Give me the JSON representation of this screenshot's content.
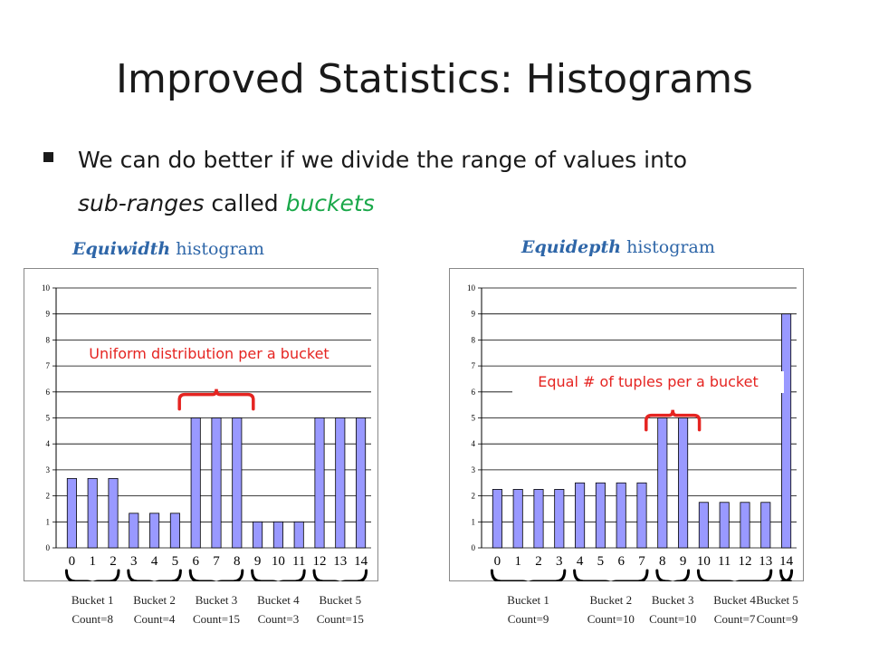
{
  "slide": {
    "title": "Improved Statistics: Histograms",
    "bullet": {
      "part1": "We can do better if we divide the range of values into",
      "part2": "sub-ranges",
      "part3": " called ",
      "part4": "buckets"
    }
  },
  "colors": {
    "bar": "#9999ff",
    "accent": "#e52421",
    "green": "#1aa84a",
    "title_blue": "#2e66a8"
  },
  "left": {
    "heading_bold": "Equiwidth",
    "heading_rest": " histogram",
    "annotation": "Uniform distribution per a bucket",
    "buckets": [
      {
        "name": "Bucket 1",
        "count": "Count=8"
      },
      {
        "name": "Bucket 2",
        "count": "Count=4"
      },
      {
        "name": "Bucket 3",
        "count": "Count=15"
      },
      {
        "name": "Bucket 4",
        "count": "Count=3"
      },
      {
        "name": "Bucket 5",
        "count": "Count=15"
      }
    ]
  },
  "right": {
    "heading_bold": "Equidepth",
    "heading_rest": " histogram",
    "annotation": "Equal # of tuples per a bucket",
    "buckets": [
      {
        "name": "Bucket 1",
        "count": "Count=9"
      },
      {
        "name": "Bucket 2",
        "count": "Count=10"
      },
      {
        "name": "Bucket 3",
        "count": "Count=10"
      },
      {
        "name": "Bucket 4",
        "count": "Count=7"
      },
      {
        "name": "Bucket 5",
        "count": "Count=9"
      }
    ]
  },
  "chart_data": [
    {
      "type": "bar",
      "categories": [
        "0",
        "1",
        "2",
        "3",
        "4",
        "5",
        "6",
        "7",
        "8",
        "9",
        "10",
        "11",
        "12",
        "13",
        "14"
      ],
      "values": [
        2.67,
        2.67,
        2.67,
        1.33,
        1.33,
        1.33,
        5,
        5,
        5,
        1,
        1,
        1,
        5,
        5,
        5
      ],
      "yticks": [
        "0",
        "1",
        "2",
        "3",
        "4",
        "5",
        "6",
        "7",
        "8",
        "9",
        "10"
      ],
      "ylim": [
        0,
        10
      ],
      "grid": true,
      "bucket_ranges": [
        [
          0,
          2
        ],
        [
          3,
          5
        ],
        [
          6,
          8
        ],
        [
          9,
          11
        ],
        [
          12,
          14
        ]
      ],
      "highlight_range": [
        6,
        8
      ]
    },
    {
      "type": "bar",
      "categories": [
        "0",
        "1",
        "2",
        "3",
        "4",
        "5",
        "6",
        "7",
        "8",
        "9",
        "10",
        "11",
        "12",
        "13",
        "14"
      ],
      "values": [
        2.25,
        2.25,
        2.25,
        2.25,
        2.5,
        2.5,
        2.5,
        2.5,
        5,
        5,
        1.75,
        1.75,
        1.75,
        1.75,
        9
      ],
      "yticks": [
        "0",
        "1",
        "2",
        "3",
        "4",
        "5",
        "6",
        "7",
        "8",
        "9",
        "10"
      ],
      "ylim": [
        0,
        10
      ],
      "grid": true,
      "bucket_ranges": [
        [
          0,
          3
        ],
        [
          4,
          7
        ],
        [
          8,
          9
        ],
        [
          10,
          13
        ],
        [
          14,
          14
        ]
      ],
      "highlight_range": [
        8,
        9
      ]
    }
  ]
}
